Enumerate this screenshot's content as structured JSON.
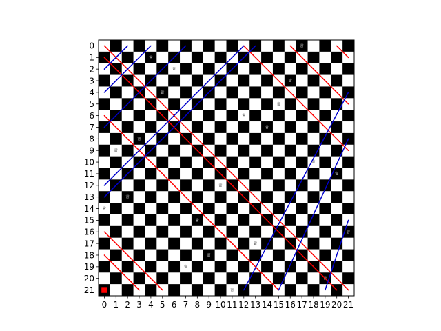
{
  "chart_data": {
    "type": "heatmap",
    "board_size": 22,
    "x_ticks": [
      "0",
      "1",
      "2",
      "3",
      "4",
      "5",
      "6",
      "7",
      "8",
      "9",
      "10",
      "11",
      "12",
      "13",
      "14",
      "15",
      "16",
      "17",
      "18",
      "19",
      "20",
      "21"
    ],
    "y_ticks": [
      "0",
      "1",
      "2",
      "3",
      "4",
      "5",
      "6",
      "7",
      "8",
      "9",
      "10",
      "11",
      "12",
      "13",
      "14",
      "15",
      "16",
      "17",
      "18",
      "19",
      "20",
      "21"
    ],
    "y_axis_inverted": true,
    "square_colors": {
      "dark": "#000000",
      "light": "#ffffff"
    },
    "queen_glyph": "♕",
    "queen_color_on_dark": "#ffffff",
    "queen_color_on_light": "#000000",
    "queens": [
      {
        "row": 0,
        "col": 17
      },
      {
        "row": 1,
        "col": 4
      },
      {
        "row": 2,
        "col": 6
      },
      {
        "row": 3,
        "col": 16
      },
      {
        "row": 4,
        "col": 5
      },
      {
        "row": 5,
        "col": 15
      },
      {
        "row": 6,
        "col": 12
      },
      {
        "row": 7,
        "col": 14
      },
      {
        "row": 8,
        "col": 3
      },
      {
        "row": 9,
        "col": 1
      },
      {
        "row": 10,
        "col": 18
      },
      {
        "row": 11,
        "col": 20
      },
      {
        "row": 12,
        "col": 10
      },
      {
        "row": 13,
        "col": 2
      },
      {
        "row": 14,
        "col": 0
      },
      {
        "row": 15,
        "col": 8
      },
      {
        "row": 16,
        "col": 21
      },
      {
        "row": 17,
        "col": 13
      },
      {
        "row": 18,
        "col": 9
      },
      {
        "row": 19,
        "col": 7
      },
      {
        "row": 20,
        "col": 19
      },
      {
        "row": 21,
        "col": 11
      }
    ],
    "highlight": {
      "row": 21,
      "col": 0,
      "color": "#ff0000"
    },
    "anti_diagonals_blue": {
      "color": "#0000cc",
      "lines": [
        {
          "from": [
            2,
            0
          ],
          "to": [
            0,
            2
          ]
        },
        {
          "from": [
            4,
            0
          ],
          "to": [
            0,
            4
          ]
        },
        {
          "from": [
            7,
            0
          ],
          "to": [
            0,
            7
          ]
        },
        {
          "from": [
            12,
            0
          ],
          "to": [
            0,
            12
          ]
        },
        {
          "from": [
            13,
            0
          ],
          "to": [
            0,
            13
          ]
        },
        {
          "from": [
            21,
            12
          ],
          "to": [
            4,
            21
          ]
        },
        {
          "from": [
            21,
            15
          ],
          "to": [
            8,
            21
          ]
        },
        {
          "from": [
            21,
            19
          ],
          "to": [
            15,
            21
          ]
        }
      ]
    },
    "main_diagonals_red": {
      "color": "#ff0000",
      "lines": [
        {
          "from": [
            0,
            0
          ],
          "to": [
            21,
            21
          ]
        },
        {
          "from": [
            0,
            12
          ],
          "to": [
            9,
            21
          ]
        },
        {
          "from": [
            0,
            16
          ],
          "to": [
            5,
            21
          ]
        },
        {
          "from": [
            0,
            20
          ],
          "to": [
            1,
            21
          ]
        },
        {
          "from": [
            1,
            0
          ],
          "to": [
            21,
            20
          ]
        },
        {
          "from": [
            6,
            0
          ],
          "to": [
            21,
            15
          ]
        },
        {
          "from": [
            16,
            0
          ],
          "to": [
            21,
            5
          ]
        },
        {
          "from": [
            18,
            0
          ],
          "to": [
            21,
            3
          ]
        }
      ]
    }
  }
}
